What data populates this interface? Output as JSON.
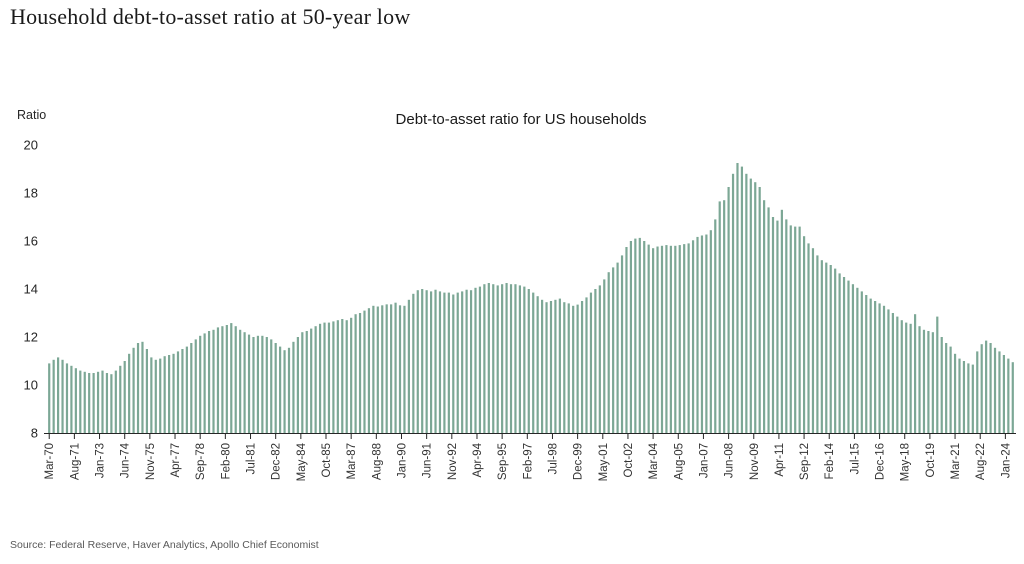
{
  "header": {
    "title": "Household debt-to-asset ratio at 50-year low"
  },
  "chart": {
    "subtitle": "Debt-to-asset ratio for US households",
    "y_axis_title": "Ratio"
  },
  "footer": {
    "source": "Source: Federal Reserve, Haver Analytics, Apollo Chief Economist"
  },
  "chart_data": {
    "type": "bar",
    "title": "Debt-to-asset ratio for US households",
    "xlabel": "",
    "ylabel": "Ratio",
    "ylim": [
      8,
      20
    ],
    "y_ticks": [
      8,
      10,
      12,
      14,
      16,
      18,
      20
    ],
    "grid": false,
    "legend": null,
    "frequency": "quarterly",
    "x_start": "1970Q1",
    "x_end": "2024Q2",
    "x_tick_interval_months": 17,
    "x_tick_labels": [
      "Mar-70",
      "Aug-71",
      "Jan-73",
      "Jun-74",
      "Nov-75",
      "Apr-77",
      "Sep-78",
      "Feb-80",
      "Jul-81",
      "Dec-82",
      "May-84",
      "Oct-85",
      "Mar-87",
      "Aug-88",
      "Jan-90",
      "Jun-91",
      "Nov-92",
      "Apr-94",
      "Sep-95",
      "Feb-97",
      "Jul-98",
      "Dec-99",
      "May-01",
      "Oct-02",
      "Mar-04",
      "Aug-05",
      "Jan-07",
      "Jun-08",
      "Nov-09",
      "Apr-11",
      "Sep-12",
      "Feb-14",
      "Jul-15",
      "Dec-16",
      "May-18",
      "Oct-19",
      "Mar-21",
      "Aug-22",
      "Jan-24"
    ],
    "values": [
      10.9,
      11.05,
      11.15,
      11.05,
      10.9,
      10.8,
      10.7,
      10.6,
      10.55,
      10.5,
      10.5,
      10.55,
      10.6,
      10.5,
      10.45,
      10.6,
      10.8,
      11.0,
      11.3,
      11.55,
      11.75,
      11.8,
      11.5,
      11.15,
      11.05,
      11.1,
      11.2,
      11.25,
      11.3,
      11.4,
      11.5,
      11.6,
      11.75,
      11.9,
      12.05,
      12.15,
      12.25,
      12.3,
      12.4,
      12.45,
      12.5,
      12.58,
      12.45,
      12.3,
      12.2,
      12.1,
      12.0,
      12.05,
      12.05,
      12.0,
      11.9,
      11.75,
      11.6,
      11.45,
      11.55,
      11.8,
      12.0,
      12.2,
      12.25,
      12.35,
      12.45,
      12.55,
      12.6,
      12.6,
      12.65,
      12.7,
      12.75,
      12.7,
      12.8,
      12.95,
      13.0,
      13.1,
      13.2,
      13.3,
      13.27,
      13.32,
      13.36,
      13.36,
      13.43,
      13.32,
      13.3,
      13.55,
      13.8,
      13.95,
      14.0,
      13.95,
      13.9,
      13.97,
      13.9,
      13.85,
      13.85,
      13.77,
      13.85,
      13.9,
      13.97,
      13.95,
      14.05,
      14.1,
      14.2,
      14.25,
      14.2,
      14.15,
      14.2,
      14.25,
      14.2,
      14.2,
      14.15,
      14.1,
      14.0,
      13.85,
      13.7,
      13.55,
      13.45,
      13.5,
      13.55,
      13.6,
      13.45,
      13.4,
      13.3,
      13.35,
      13.5,
      13.65,
      13.85,
      14.0,
      14.15,
      14.4,
      14.7,
      14.9,
      15.1,
      15.4,
      15.75,
      16.0,
      16.1,
      16.13,
      16.0,
      15.85,
      15.7,
      15.77,
      15.8,
      15.83,
      15.8,
      15.8,
      15.83,
      15.87,
      15.9,
      16.03,
      16.17,
      16.23,
      16.27,
      16.45,
      16.9,
      17.65,
      17.7,
      18.25,
      18.8,
      19.25,
      19.1,
      18.8,
      18.6,
      18.45,
      18.25,
      17.7,
      17.4,
      17.0,
      16.85,
      17.3,
      16.9,
      16.65,
      16.6,
      16.6,
      16.2,
      15.9,
      15.7,
      15.4,
      15.2,
      15.1,
      15.0,
      14.85,
      14.65,
      14.5,
      14.35,
      14.2,
      14.05,
      13.9,
      13.75,
      13.6,
      13.5,
      13.4,
      13.3,
      13.15,
      13.0,
      12.85,
      12.7,
      12.6,
      12.55,
      12.95,
      12.45,
      12.3,
      12.25,
      12.2,
      12.85,
      12.0,
      11.75,
      11.6,
      11.3,
      11.1,
      11.0,
      10.9,
      10.85,
      11.4,
      11.7,
      11.85,
      11.75,
      11.55,
      11.4,
      11.25,
      11.1,
      10.95
    ],
    "bar_color": "#7ca795",
    "axis_color": "#262626",
    "tick_label_color": "#333333"
  }
}
